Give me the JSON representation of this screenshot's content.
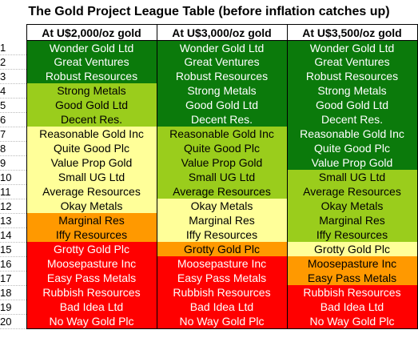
{
  "title": "The Gold Project League Table (before inflation catches up)",
  "columns": [
    "At U$2,000/oz gold",
    "At U$3,000/oz gold",
    "At U$3,500/oz gold"
  ],
  "colors": {
    "dark": "#0b7a0b",
    "lime": "#9acd1c",
    "yellow": "#ffff99",
    "orange": "#ff9900",
    "red": "#ff0000"
  },
  "rows": [
    {
      "rank": "1",
      "cells": [
        {
          "name": "Wonder Gold Ltd",
          "tier": "dark"
        },
        {
          "name": "Wonder Gold Ltd",
          "tier": "dark"
        },
        {
          "name": "Wonder Gold Ltd",
          "tier": "dark"
        }
      ]
    },
    {
      "rank": "2",
      "cells": [
        {
          "name": "Great Ventures",
          "tier": "dark"
        },
        {
          "name": "Great Ventures",
          "tier": "dark"
        },
        {
          "name": "Great Ventures",
          "tier": "dark"
        }
      ]
    },
    {
      "rank": "3",
      "cells": [
        {
          "name": "Robust Resources",
          "tier": "dark"
        },
        {
          "name": "Robust Resources",
          "tier": "dark"
        },
        {
          "name": "Robust Resources",
          "tier": "dark"
        }
      ]
    },
    {
      "rank": "4",
      "cells": [
        {
          "name": "Strong Metals",
          "tier": "lime"
        },
        {
          "name": "Strong Metals",
          "tier": "dark"
        },
        {
          "name": "Strong Metals",
          "tier": "dark"
        }
      ]
    },
    {
      "rank": "5",
      "cells": [
        {
          "name": "Good Gold Ltd",
          "tier": "lime"
        },
        {
          "name": "Good Gold Ltd",
          "tier": "dark"
        },
        {
          "name": "Good Gold Ltd",
          "tier": "dark"
        }
      ]
    },
    {
      "rank": "6",
      "cells": [
        {
          "name": "Decent Res.",
          "tier": "lime"
        },
        {
          "name": "Decent Res.",
          "tier": "dark"
        },
        {
          "name": "Decent Res.",
          "tier": "dark"
        }
      ]
    },
    {
      "rank": "7",
      "cells": [
        {
          "name": "Reasonable Gold Inc",
          "tier": "yellow"
        },
        {
          "name": "Reasonable Gold Inc",
          "tier": "lime"
        },
        {
          "name": "Reasonable Gold Inc",
          "tier": "dark"
        }
      ]
    },
    {
      "rank": "8",
      "cells": [
        {
          "name": "Quite Good Plc",
          "tier": "yellow"
        },
        {
          "name": "Quite Good Plc",
          "tier": "lime"
        },
        {
          "name": "Quite Good Plc",
          "tier": "dark"
        }
      ]
    },
    {
      "rank": "9",
      "cells": [
        {
          "name": "Value Prop Gold",
          "tier": "yellow"
        },
        {
          "name": "Value Prop Gold",
          "tier": "lime"
        },
        {
          "name": "Value Prop Gold",
          "tier": "dark"
        }
      ]
    },
    {
      "rank": "10",
      "cells": [
        {
          "name": "Small UG Ltd",
          "tier": "yellow"
        },
        {
          "name": "Small UG Ltd",
          "tier": "lime"
        },
        {
          "name": "Small UG Ltd",
          "tier": "lime"
        }
      ]
    },
    {
      "rank": "11",
      "cells": [
        {
          "name": "Average Resources",
          "tier": "yellow"
        },
        {
          "name": "Average Resources",
          "tier": "lime"
        },
        {
          "name": "Average Resources",
          "tier": "lime"
        }
      ]
    },
    {
      "rank": "12",
      "cells": [
        {
          "name": "Okay Metals",
          "tier": "yellow"
        },
        {
          "name": "Okay Metals",
          "tier": "yellow"
        },
        {
          "name": "Okay Metals",
          "tier": "lime"
        }
      ]
    },
    {
      "rank": "13",
      "cells": [
        {
          "name": "Marginal Res",
          "tier": "orange"
        },
        {
          "name": "Marginal Res",
          "tier": "yellow"
        },
        {
          "name": "Marginal Res",
          "tier": "lime"
        }
      ]
    },
    {
      "rank": "14",
      "cells": [
        {
          "name": "Iffy Resources",
          "tier": "orange"
        },
        {
          "name": "Iffy Resources",
          "tier": "yellow"
        },
        {
          "name": "Iffy Resources",
          "tier": "lime"
        }
      ]
    },
    {
      "rank": "15",
      "cells": [
        {
          "name": "Grotty Gold Plc",
          "tier": "red"
        },
        {
          "name": "Grotty Gold Plc",
          "tier": "orange"
        },
        {
          "name": "Grotty Gold Plc",
          "tier": "yellow"
        }
      ]
    },
    {
      "rank": "16",
      "cells": [
        {
          "name": "Moosepasture Inc",
          "tier": "red"
        },
        {
          "name": "Moosepasture Inc",
          "tier": "red"
        },
        {
          "name": "Moosepasture Inc",
          "tier": "orange"
        }
      ]
    },
    {
      "rank": "17",
      "cells": [
        {
          "name": "Easy Pass Metals",
          "tier": "red"
        },
        {
          "name": "Easy Pass Metals",
          "tier": "red"
        },
        {
          "name": "Easy Pass Metals",
          "tier": "orange"
        }
      ]
    },
    {
      "rank": "18",
      "cells": [
        {
          "name": "Rubbish Resources",
          "tier": "red"
        },
        {
          "name": "Rubbish Resources",
          "tier": "red"
        },
        {
          "name": "Rubbish Resources",
          "tier": "red"
        }
      ]
    },
    {
      "rank": "19",
      "cells": [
        {
          "name": "Bad Idea Ltd",
          "tier": "red"
        },
        {
          "name": "Bad Idea Ltd",
          "tier": "red"
        },
        {
          "name": "Bad Idea Ltd",
          "tier": "red"
        }
      ]
    },
    {
      "rank": "20",
      "cells": [
        {
          "name": "No Way Gold Plc",
          "tier": "red"
        },
        {
          "name": "No Way Gold Plc",
          "tier": "red"
        },
        {
          "name": "No Way Gold Plc",
          "tier": "red"
        }
      ]
    }
  ]
}
